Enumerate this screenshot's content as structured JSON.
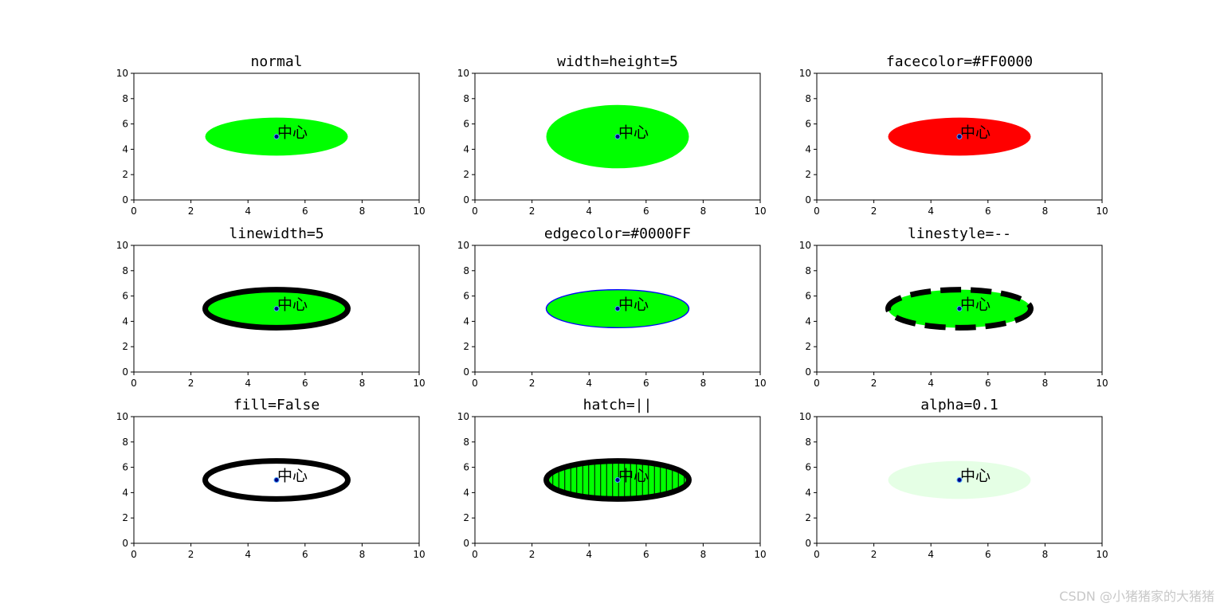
{
  "figure": {
    "watermark": "CSDN @小猪猪家的大猪猪",
    "colors": {
      "background": "#ffffff",
      "axis": "#000000",
      "center_point_face": "#000080",
      "center_point_edge": "#4da6ff"
    }
  },
  "chart_data": [
    {
      "type": "scatter",
      "title": "normal",
      "xlim": [
        0,
        10
      ],
      "ylim": [
        0,
        10
      ],
      "xticks": [
        "0",
        "2",
        "4",
        "6",
        "8",
        "10"
      ],
      "yticks": [
        "0",
        "2",
        "4",
        "6",
        "8",
        "10"
      ],
      "ellipse": {
        "center": [
          5,
          5
        ],
        "width": 5,
        "height": 3,
        "facecolor": "#00ff00",
        "edgecolor": "#00ff00",
        "linewidth": 0,
        "linestyle": "solid",
        "fill": true,
        "hatch": "",
        "alpha": 1
      },
      "center_point": {
        "x": 5,
        "y": 5
      },
      "annotation": {
        "text": "中心",
        "x": 5,
        "y": 5
      }
    },
    {
      "type": "scatter",
      "title": "width=height=5",
      "xlim": [
        0,
        10
      ],
      "ylim": [
        0,
        10
      ],
      "xticks": [
        "0",
        "2",
        "4",
        "6",
        "8",
        "10"
      ],
      "yticks": [
        "0",
        "2",
        "4",
        "6",
        "8",
        "10"
      ],
      "ellipse": {
        "center": [
          5,
          5
        ],
        "width": 5,
        "height": 5,
        "facecolor": "#00ff00",
        "edgecolor": "#00ff00",
        "linewidth": 0,
        "linestyle": "solid",
        "fill": true,
        "hatch": "",
        "alpha": 1
      },
      "center_point": {
        "x": 5,
        "y": 5
      },
      "annotation": {
        "text": "中心",
        "x": 5,
        "y": 5
      }
    },
    {
      "type": "scatter",
      "title": "facecolor=#FF0000",
      "xlim": [
        0,
        10
      ],
      "ylim": [
        0,
        10
      ],
      "xticks": [
        "0",
        "2",
        "4",
        "6",
        "8",
        "10"
      ],
      "yticks": [
        "0",
        "2",
        "4",
        "6",
        "8",
        "10"
      ],
      "ellipse": {
        "center": [
          5,
          5
        ],
        "width": 5,
        "height": 3,
        "facecolor": "#ff0000",
        "edgecolor": "#ff0000",
        "linewidth": 0,
        "linestyle": "solid",
        "fill": true,
        "hatch": "",
        "alpha": 1
      },
      "center_point": {
        "x": 5,
        "y": 5
      },
      "annotation": {
        "text": "中心",
        "x": 5,
        "y": 5
      }
    },
    {
      "type": "scatter",
      "title": "linewidth=5",
      "xlim": [
        0,
        10
      ],
      "ylim": [
        0,
        10
      ],
      "xticks": [
        "0",
        "2",
        "4",
        "6",
        "8",
        "10"
      ],
      "yticks": [
        "0",
        "2",
        "4",
        "6",
        "8",
        "10"
      ],
      "ellipse": {
        "center": [
          5,
          5
        ],
        "width": 5,
        "height": 3,
        "facecolor": "#00ff00",
        "edgecolor": "#000000",
        "linewidth": 5,
        "linestyle": "solid",
        "fill": true,
        "hatch": "",
        "alpha": 1
      },
      "center_point": {
        "x": 5,
        "y": 5
      },
      "annotation": {
        "text": "中心",
        "x": 5,
        "y": 5
      }
    },
    {
      "type": "scatter",
      "title": "edgecolor=#0000FF",
      "xlim": [
        0,
        10
      ],
      "ylim": [
        0,
        10
      ],
      "xticks": [
        "0",
        "2",
        "4",
        "6",
        "8",
        "10"
      ],
      "yticks": [
        "0",
        "2",
        "4",
        "6",
        "8",
        "10"
      ],
      "ellipse": {
        "center": [
          5,
          5
        ],
        "width": 5,
        "height": 3,
        "facecolor": "#00ff00",
        "edgecolor": "#0000ff",
        "linewidth": 1,
        "linestyle": "solid",
        "fill": true,
        "hatch": "",
        "alpha": 1
      },
      "center_point": {
        "x": 5,
        "y": 5
      },
      "annotation": {
        "text": "中心",
        "x": 5,
        "y": 5
      }
    },
    {
      "type": "scatter",
      "title": "linestyle=--",
      "xlim": [
        0,
        10
      ],
      "ylim": [
        0,
        10
      ],
      "xticks": [
        "0",
        "2",
        "4",
        "6",
        "8",
        "10"
      ],
      "yticks": [
        "0",
        "2",
        "4",
        "6",
        "8",
        "10"
      ],
      "ellipse": {
        "center": [
          5,
          5
        ],
        "width": 5,
        "height": 3,
        "facecolor": "#00ff00",
        "edgecolor": "#000000",
        "linewidth": 5,
        "linestyle": "dashed",
        "fill": true,
        "hatch": "",
        "alpha": 1
      },
      "center_point": {
        "x": 5,
        "y": 5
      },
      "annotation": {
        "text": "中心",
        "x": 5,
        "y": 5
      }
    },
    {
      "type": "scatter",
      "title": "fill=False",
      "xlim": [
        0,
        10
      ],
      "ylim": [
        0,
        10
      ],
      "xticks": [
        "0",
        "2",
        "4",
        "6",
        "8",
        "10"
      ],
      "yticks": [
        "0",
        "2",
        "4",
        "6",
        "8",
        "10"
      ],
      "ellipse": {
        "center": [
          5,
          5
        ],
        "width": 5,
        "height": 3,
        "facecolor": "#00ff00",
        "edgecolor": "#000000",
        "linewidth": 5,
        "linestyle": "solid",
        "fill": false,
        "hatch": "",
        "alpha": 1
      },
      "center_point": {
        "x": 5,
        "y": 5
      },
      "annotation": {
        "text": "中心",
        "x": 5,
        "y": 5
      }
    },
    {
      "type": "scatter",
      "title": "hatch=||",
      "xlim": [
        0,
        10
      ],
      "ylim": [
        0,
        10
      ],
      "xticks": [
        "0",
        "2",
        "4",
        "6",
        "8",
        "10"
      ],
      "yticks": [
        "0",
        "2",
        "4",
        "6",
        "8",
        "10"
      ],
      "ellipse": {
        "center": [
          5,
          5
        ],
        "width": 5,
        "height": 3,
        "facecolor": "#00ff00",
        "edgecolor": "#000000",
        "linewidth": 5,
        "linestyle": "solid",
        "fill": true,
        "hatch": "||",
        "alpha": 1
      },
      "center_point": {
        "x": 5,
        "y": 5
      },
      "annotation": {
        "text": "中心",
        "x": 5,
        "y": 5
      }
    },
    {
      "type": "scatter",
      "title": "alpha=0.1",
      "xlim": [
        0,
        10
      ],
      "ylim": [
        0,
        10
      ],
      "xticks": [
        "0",
        "2",
        "4",
        "6",
        "8",
        "10"
      ],
      "yticks": [
        "0",
        "2",
        "4",
        "6",
        "8",
        "10"
      ],
      "ellipse": {
        "center": [
          5,
          5
        ],
        "width": 5,
        "height": 3,
        "facecolor": "#00ff00",
        "edgecolor": "#00ff00",
        "linewidth": 0,
        "linestyle": "solid",
        "fill": true,
        "hatch": "",
        "alpha": 0.1
      },
      "center_point": {
        "x": 5,
        "y": 5
      },
      "annotation": {
        "text": "中心",
        "x": 5,
        "y": 5
      }
    }
  ]
}
